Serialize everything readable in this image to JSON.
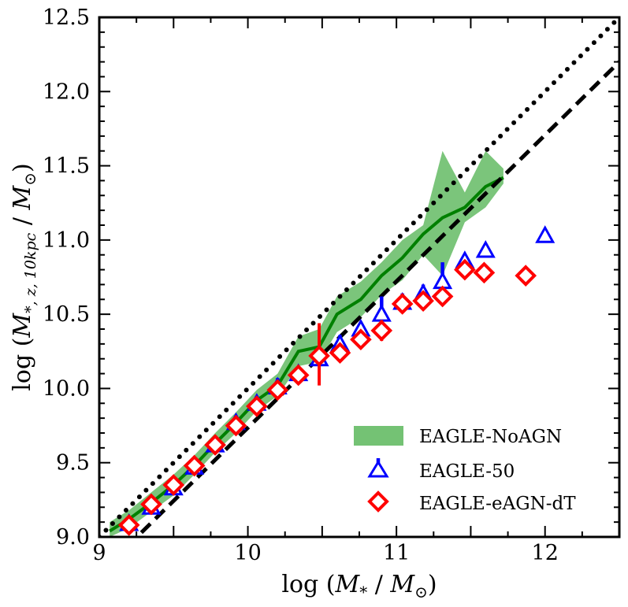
{
  "chart_data": {
    "type": "line",
    "title": "",
    "xlabel": "log (M_* / M_⊙)",
    "ylabel": "log (M_{*,z,10kpc} / M_⊙)",
    "xlim": [
      9,
      12.5
    ],
    "ylim": [
      9.0,
      12.5
    ],
    "x_ticks": [
      "9",
      "10",
      "11",
      "12"
    ],
    "y_ticks": [
      "9.0",
      "9.5",
      "10.0",
      "10.5",
      "11.0",
      "11.5",
      "12.0",
      "12.5"
    ],
    "grid": false,
    "legend_position": "bottom-right",
    "reference_lines": [
      {
        "name": "one-to-one",
        "style": "dotted",
        "points": [
          [
            9.0,
            9.0
          ],
          [
            12.5,
            12.5
          ]
        ]
      },
      {
        "name": "offset",
        "style": "dashed",
        "points": [
          [
            9.0,
            8.75
          ],
          [
            12.5,
            12.2
          ]
        ]
      }
    ],
    "series": [
      {
        "name": "EAGLE-NoAGN",
        "legend": "EAGLE-NoAGN",
        "color": "#008000",
        "band_color": "#74c274",
        "x": [
          9.07,
          9.2,
          9.35,
          9.5,
          9.64,
          9.78,
          9.92,
          10.06,
          10.2,
          10.34,
          10.48,
          10.6,
          10.76,
          10.9,
          11.04,
          11.18,
          11.31,
          11.46,
          11.6,
          11.72
        ],
        "y": [
          9.04,
          9.12,
          9.23,
          9.35,
          9.48,
          9.63,
          9.77,
          9.92,
          10.02,
          10.25,
          10.28,
          10.5,
          10.6,
          10.76,
          10.88,
          11.04,
          11.15,
          11.22,
          11.36,
          11.42
        ],
        "lower": [
          9.0,
          9.06,
          9.17,
          9.28,
          9.42,
          9.57,
          9.7,
          9.85,
          9.95,
          10.15,
          10.18,
          10.38,
          10.48,
          10.63,
          10.73,
          10.9,
          10.76,
          11.12,
          11.22,
          11.38
        ],
        "upper": [
          9.1,
          9.18,
          9.3,
          9.42,
          9.55,
          9.7,
          9.84,
          9.99,
          10.1,
          10.35,
          10.4,
          10.62,
          10.72,
          10.85,
          11.0,
          11.1,
          11.6,
          11.32,
          11.6,
          11.48
        ]
      },
      {
        "name": "EAGLE-50",
        "legend": "EAGLE-50",
        "color": "#0000ff",
        "x": [
          9.2,
          9.35,
          9.5,
          9.64,
          9.78,
          9.92,
          10.06,
          10.2,
          10.34,
          10.48,
          10.62,
          10.76,
          10.9,
          11.04,
          11.18,
          11.31,
          11.46,
          11.6,
          12.0
        ],
        "y": [
          9.09,
          9.2,
          9.33,
          9.47,
          9.62,
          9.77,
          9.9,
          10.01,
          10.1,
          10.2,
          10.3,
          10.4,
          10.5,
          10.58,
          10.64,
          10.72,
          10.86,
          10.93,
          11.03
        ],
        "err_low": [
          0.03,
          0.03,
          0.03,
          0.03,
          0.03,
          0.04,
          0.05,
          0.06,
          0.05,
          0.05,
          0.06,
          0.05,
          0.07,
          0.06,
          0.06,
          0.13,
          0.03,
          0.0,
          0.0
        ],
        "err_high": [
          0.03,
          0.03,
          0.03,
          0.03,
          0.03,
          0.04,
          0.05,
          0.06,
          0.05,
          0.05,
          0.06,
          0.05,
          0.12,
          0.06,
          0.06,
          0.13,
          0.03,
          0.0,
          0.0
        ]
      },
      {
        "name": "EAGLE-eAGN-dT",
        "legend": "EAGLE-eAGN-dT",
        "color": "#ff0000",
        "x": [
          9.2,
          9.35,
          9.5,
          9.64,
          9.78,
          9.92,
          10.06,
          10.2,
          10.34,
          10.48,
          10.62,
          10.76,
          10.9,
          11.04,
          11.18,
          11.31,
          11.46,
          11.59,
          11.87
        ],
        "y": [
          9.08,
          9.22,
          9.35,
          9.48,
          9.62,
          9.75,
          9.88,
          9.99,
          10.09,
          10.22,
          10.24,
          10.33,
          10.39,
          10.57,
          10.59,
          10.62,
          10.8,
          10.78,
          10.76
        ],
        "err_low": [
          0.02,
          0.02,
          0.02,
          0.02,
          0.02,
          0.02,
          0.02,
          0.03,
          0.03,
          0.2,
          0.06,
          0.05,
          0.07,
          0.05,
          0.06,
          0.05,
          0.04,
          0.0,
          0.0
        ],
        "err_high": [
          0.02,
          0.02,
          0.02,
          0.02,
          0.02,
          0.02,
          0.02,
          0.03,
          0.03,
          0.22,
          0.06,
          0.05,
          0.07,
          0.05,
          0.06,
          0.05,
          0.04,
          0.0,
          0.0
        ]
      }
    ]
  }
}
